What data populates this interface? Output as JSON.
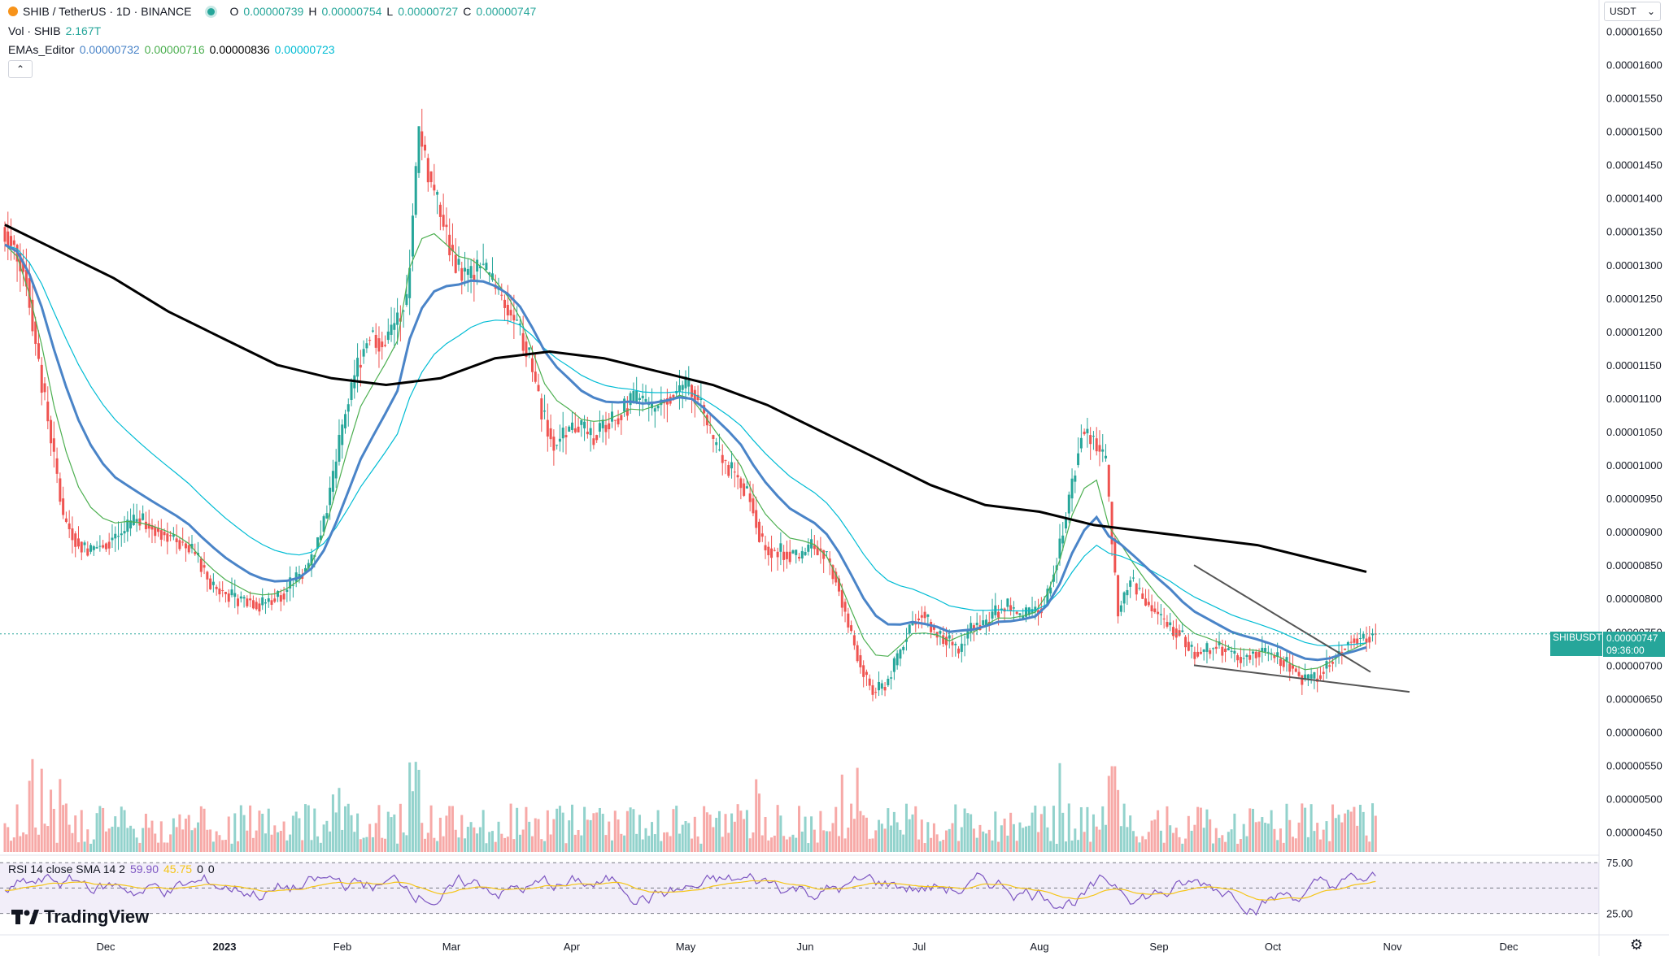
{
  "header": {
    "symbol": "SHIB / TetherUS · 1D · BINANCE",
    "o_label": "O",
    "o_value": "0.00000739",
    "h_label": "H",
    "h_value": "0.00000754",
    "l_label": "L",
    "l_value": "0.00000727",
    "c_label": "C",
    "c_value": "0.00000747",
    "vol_label": "Vol · SHIB",
    "vol_value": "2.167T",
    "ema_label": "EMAs_Editor",
    "ema_values": [
      "0.00000732",
      "0.00000716",
      "0.00000836",
      "0.00000723"
    ],
    "rsi_label": "RSI 14 close SMA 14 2",
    "rsi_value": "59.90",
    "rsi_sma": "45.75",
    "rsi_extra1": "0",
    "rsi_extra2": "0"
  },
  "currency": "USDT",
  "price_tag": {
    "symbol": "SHIBUSDT",
    "price": "0.00000747",
    "countdown": "09:36:00"
  },
  "brand": "TradingView",
  "colors": {
    "up": "#26a69a",
    "down": "#ef5350",
    "ema1": "#4a84c8",
    "ema2": "#4caf50",
    "ema3": "#000000",
    "ema4": "#00bcd4",
    "rsi": "#7e57c2",
    "rsi_sma": "#f5c518"
  },
  "chart_data": {
    "type": "candlestick",
    "y_ticks": [
      "0.00001650",
      "0.00001600",
      "0.00001550",
      "0.00001500",
      "0.00001450",
      "0.00001400",
      "0.00001350",
      "0.00001300",
      "0.00001250",
      "0.00001200",
      "0.00001150",
      "0.00001100",
      "0.00001050",
      "0.00001000",
      "0.00000950",
      "0.00000900",
      "0.00000850",
      "0.00000800",
      "0.00000750",
      "0.00000700",
      "0.00000650",
      "0.00000600",
      "0.00000550",
      "0.00000500",
      "0.00000450"
    ],
    "x_ticks": [
      "Dec",
      "2023",
      "Feb",
      "Mar",
      "Apr",
      "May",
      "Jun",
      "Jul",
      "Aug",
      "Sep",
      "Oct",
      "Nov",
      "Dec"
    ],
    "rsi_ticks": [
      "75.00",
      "25.00"
    ],
    "ylim": [
      4.3e-06,
      1.67e-05
    ],
    "candles_approx_close": [
      1.33e-05,
      1.28e-05,
      1.15e-05,
      1.04e-05,
      9.2e-06,
      8.9e-06,
      8.7e-06,
      8.8e-06,
      8.9e-06,
      9e-06,
      9.2e-06,
      9.1e-06,
      9e-06,
      8.9e-06,
      8.8e-06,
      8.6e-06,
      8.2e-06,
      8.1e-06,
      8e-06,
      8e-06,
      7.9e-06,
      8e-06,
      8.1e-06,
      8.3e-06,
      8.5e-06,
      9e-06,
      9.8e-06,
      1.08e-05,
      1.15e-05,
      1.2e-05,
      1.18e-05,
      1.21e-05,
      1.25e-05,
      1.5e-05,
      1.42e-05,
      1.36e-05,
      1.3e-05,
      1.28e-05,
      1.3e-05,
      1.27e-05,
      1.24e-05,
      1.21e-05,
      1.16e-05,
      1.08e-05,
      1.03e-05,
      1.05e-05,
      1.06e-05,
      1.04e-05,
      1.06e-05,
      1.07e-05,
      1.09e-05,
      1.1e-05,
      1.08e-05,
      1.1e-05,
      1.11e-05,
      1.12e-05,
      1.09e-05,
      1.03e-05,
      1e-05,
      9.8e-06,
      9.5e-06,
      8.8e-06,
      8.7e-06,
      8.7e-06,
      8.6e-06,
      8.8e-06,
      8.7e-06,
      8.3e-06,
      7.6e-06,
      7e-06,
      6.6e-06,
      6.7e-06,
      7.1e-06,
      7.6e-06,
      7.8e-06,
      7.5e-06,
      7.4e-06,
      7.2e-06,
      7.6e-06,
      7.6e-06,
      7.8e-06,
      7.9e-06,
      7.7e-06,
      7.8e-06,
      7.9e-06,
      8.6e-06,
      9.5e-06,
      1.05e-05,
      1.04e-05,
      1e-05,
      7.8e-06,
      8.3e-06,
      8e-06,
      7.8e-06,
      7.6e-06,
      7.5e-06,
      7.2e-06,
      7.2e-06,
      7.3e-06,
      7.2e-06,
      7.1e-06,
      7.2e-06,
      7.2e-06,
      7.1e-06,
      7e-06,
      6.8e-06,
      6.8e-06,
      7e-06,
      7.2e-06,
      7.4e-06,
      7.4e-06,
      7.5e-06
    ],
    "ema_black_200": [
      1.36e-05,
      1.32e-05,
      1.28e-05,
      1.23e-05,
      1.19e-05,
      1.15e-05,
      1.13e-05,
      1.12e-05,
      1.13e-05,
      1.16e-05,
      1.17e-05,
      1.16e-05,
      1.14e-05,
      1.12e-05,
      1.09e-05,
      1.05e-05,
      1.01e-05,
      9.7e-06,
      9.4e-06,
      9.3e-06,
      9.1e-06,
      9e-06,
      8.9e-06,
      8.8e-06,
      8.6e-06,
      8.4e-06
    ],
    "annotation_lines": "two descending trendlines forming falling wedge from Sep to Oct",
    "rsi_bounds": [
      25,
      75
    ]
  }
}
